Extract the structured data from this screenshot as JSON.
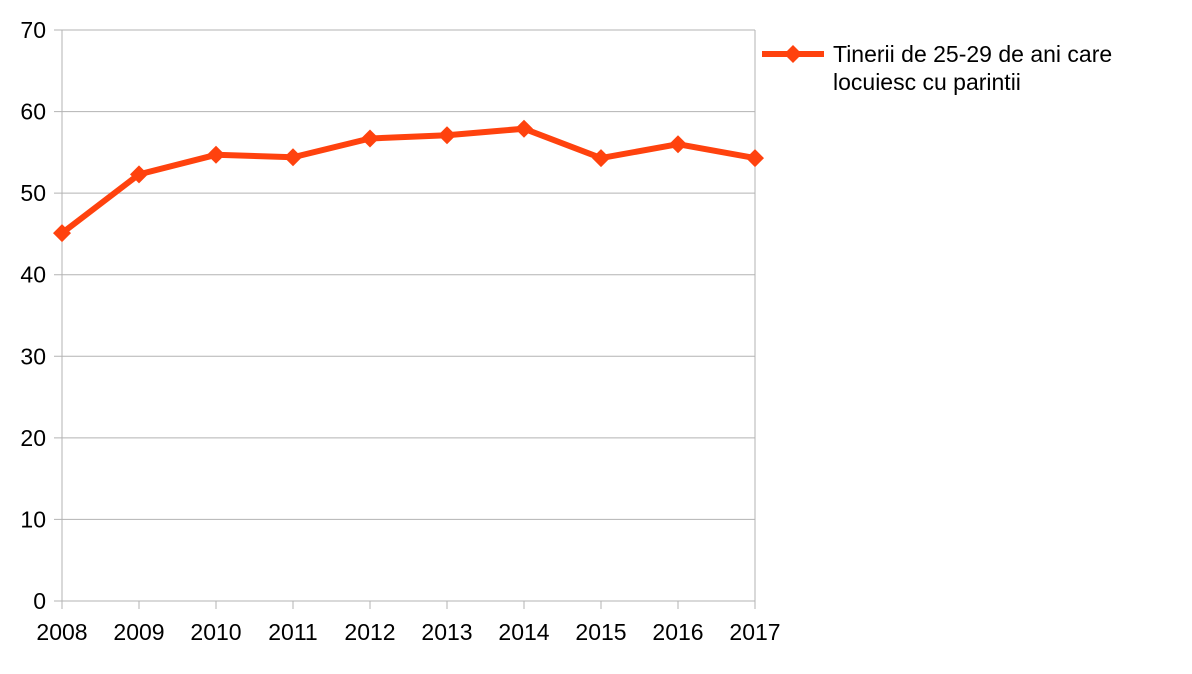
{
  "chart_data": {
    "type": "line",
    "title": "",
    "xlabel": "",
    "ylabel": "",
    "categories": [
      "2008",
      "2009",
      "2010",
      "2011",
      "2012",
      "2013",
      "2014",
      "2015",
      "2016",
      "2017"
    ],
    "series": [
      {
        "name": "Tinerii de 25-29 de ani care locuiesc cu parintii",
        "values": [
          45.1,
          52.3,
          54.7,
          54.4,
          56.7,
          57.1,
          57.9,
          54.3,
          56.0,
          54.3
        ],
        "color": "#FF420E",
        "marker": "diamond"
      }
    ],
    "ylim": [
      0,
      70
    ],
    "y_tick_step": 10,
    "y_tick_labels": [
      "0",
      "10",
      "20",
      "30",
      "40",
      "50",
      "60",
      "70"
    ],
    "grid": "horizontal",
    "legend_position": "top-right"
  },
  "legend": {
    "label": "Tinerii de 25-29 de ani care locuiesc cu parintii"
  },
  "colors": {
    "series": "#FF420E",
    "grid": "#B3B3B3",
    "axis": "#B3B3B3",
    "text": "#000000",
    "background": "#FFFFFF"
  }
}
